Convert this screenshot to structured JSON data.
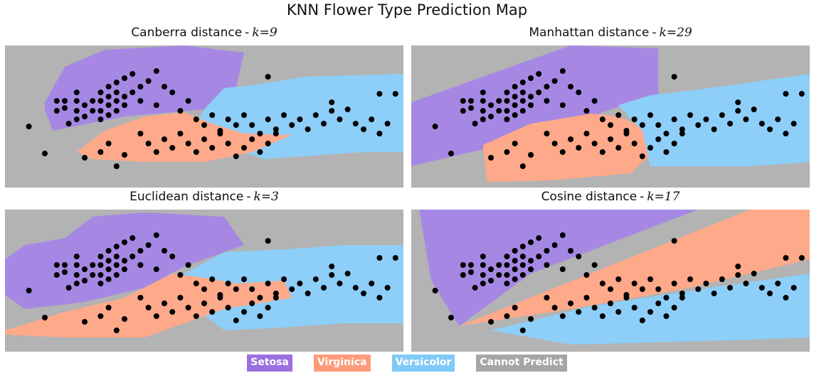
{
  "title": "KNN Flower Type Prediction Map",
  "colors": {
    "setosa": "#a688e4",
    "virginica": "#fda98a",
    "versicolor": "#8dcff8",
    "cannot": "#b3b3b3",
    "point": "#000000"
  },
  "legend": [
    {
      "label": "Setosa",
      "color": "#9b6fe0"
    },
    {
      "label": "Virginica",
      "color": "#fd9b7a"
    },
    {
      "label": "Versicolor",
      "color": "#7fcaf7"
    },
    {
      "label": "Cannot Predict",
      "color": "#a6a6a6"
    }
  ],
  "chart_data": [
    {
      "type": "scatter",
      "title": "Canberra distance",
      "k_label": "k=9",
      "k_name": "k",
      "k_value": "9",
      "background": "cannot",
      "regions": [
        {
          "class": "setosa",
          "points": [
            [
              0.1,
              0.4
            ],
            [
              0.15,
              0.15
            ],
            [
              0.25,
              0.03
            ],
            [
              0.45,
              0.0
            ],
            [
              0.6,
              0.05
            ],
            [
              0.58,
              0.3
            ],
            [
              0.5,
              0.45
            ],
            [
              0.3,
              0.5
            ],
            [
              0.12,
              0.6
            ],
            [
              0.1,
              0.45
            ]
          ]
        },
        {
          "class": "versicolor",
          "points": [
            [
              0.5,
              0.45
            ],
            [
              0.55,
              0.3
            ],
            [
              0.62,
              0.28
            ],
            [
              0.75,
              0.22
            ],
            [
              1.0,
              0.2
            ],
            [
              1.0,
              0.75
            ],
            [
              0.9,
              0.75
            ],
            [
              0.65,
              0.8
            ],
            [
              0.55,
              0.7
            ],
            [
              0.48,
              0.55
            ]
          ]
        },
        {
          "class": "virginica",
          "points": [
            [
              0.18,
              0.75
            ],
            [
              0.25,
              0.6
            ],
            [
              0.35,
              0.5
            ],
            [
              0.45,
              0.47
            ],
            [
              0.52,
              0.55
            ],
            [
              0.6,
              0.62
            ],
            [
              0.72,
              0.63
            ],
            [
              0.62,
              0.75
            ],
            [
              0.5,
              0.82
            ],
            [
              0.35,
              0.82
            ],
            [
              0.22,
              0.8
            ]
          ]
        }
      ]
    },
    {
      "type": "scatter",
      "title": "Manhattan distance",
      "k_label": "k=29",
      "k_name": "k",
      "k_value": "29",
      "background": "cannot",
      "regions": [
        {
          "class": "setosa",
          "points": [
            [
              0.0,
              0.4
            ],
            [
              0.1,
              0.3
            ],
            [
              0.3,
              0.1
            ],
            [
              0.4,
              0.0
            ],
            [
              0.62,
              0.02
            ],
            [
              0.62,
              0.35
            ],
            [
              0.5,
              0.45
            ],
            [
              0.3,
              0.65
            ],
            [
              0.15,
              0.75
            ],
            [
              0.0,
              0.85
            ]
          ]
        },
        {
          "class": "virginica",
          "points": [
            [
              0.18,
              0.7
            ],
            [
              0.3,
              0.55
            ],
            [
              0.45,
              0.48
            ],
            [
              0.52,
              0.5
            ],
            [
              0.6,
              0.6
            ],
            [
              0.62,
              0.72
            ],
            [
              0.55,
              0.9
            ],
            [
              0.35,
              0.95
            ],
            [
              0.19,
              0.96
            ]
          ]
        },
        {
          "class": "versicolor",
          "points": [
            [
              0.52,
              0.42
            ],
            [
              0.6,
              0.35
            ],
            [
              0.75,
              0.3
            ],
            [
              1.0,
              0.2
            ],
            [
              1.0,
              0.82
            ],
            [
              0.85,
              0.85
            ],
            [
              0.6,
              0.85
            ],
            [
              0.58,
              0.6
            ]
          ]
        }
      ]
    },
    {
      "type": "scatter",
      "title": "Euclidean distance",
      "k_label": "k=3",
      "k_name": "k",
      "k_value": "3",
      "background": "cannot",
      "regions": [
        {
          "class": "setosa",
          "points": [
            [
              0.0,
              0.35
            ],
            [
              0.05,
              0.25
            ],
            [
              0.15,
              0.2
            ],
            [
              0.22,
              0.05
            ],
            [
              0.35,
              0.02
            ],
            [
              0.55,
              0.05
            ],
            [
              0.6,
              0.25
            ],
            [
              0.45,
              0.4
            ],
            [
              0.35,
              0.55
            ],
            [
              0.2,
              0.65
            ],
            [
              0.05,
              0.7
            ],
            [
              0.0,
              0.6
            ]
          ]
        },
        {
          "class": "versicolor",
          "points": [
            [
              0.45,
              0.45
            ],
            [
              0.55,
              0.3
            ],
            [
              0.7,
              0.28
            ],
            [
              0.85,
              0.25
            ],
            [
              1.0,
              0.25
            ],
            [
              1.0,
              0.8
            ],
            [
              0.85,
              0.8
            ],
            [
              0.7,
              0.83
            ],
            [
              0.55,
              0.85
            ],
            [
              0.48,
              0.7
            ]
          ]
        },
        {
          "class": "virginica",
          "points": [
            [
              0.0,
              0.85
            ],
            [
              0.15,
              0.72
            ],
            [
              0.3,
              0.62
            ],
            [
              0.42,
              0.45
            ],
            [
              0.5,
              0.48
            ],
            [
              0.58,
              0.52
            ],
            [
              0.7,
              0.5
            ],
            [
              0.72,
              0.62
            ],
            [
              0.55,
              0.7
            ],
            [
              0.45,
              0.8
            ],
            [
              0.35,
              0.9
            ],
            [
              0.15,
              0.9
            ],
            [
              0.0,
              0.88
            ]
          ]
        }
      ]
    },
    {
      "type": "scatter",
      "title": "Cosine distance",
      "k_label": "k=17",
      "k_name": "k",
      "k_value": "17",
      "background": "cannot",
      "regions": [
        {
          "class": "setosa",
          "points": [
            [
              0.02,
              0.0
            ],
            [
              0.72,
              0.0
            ],
            [
              0.3,
              0.45
            ],
            [
              0.12,
              0.82
            ],
            [
              0.05,
              0.5
            ]
          ]
        },
        {
          "class": "virginica",
          "points": [
            [
              0.12,
              0.82
            ],
            [
              0.45,
              0.45
            ],
            [
              0.85,
              0.0
            ],
            [
              1.0,
              0.0
            ],
            [
              1.0,
              0.35
            ],
            [
              0.7,
              0.55
            ],
            [
              0.4,
              0.7
            ]
          ]
        },
        {
          "class": "versicolor",
          "points": [
            [
              0.2,
              0.85
            ],
            [
              0.45,
              0.68
            ],
            [
              0.75,
              0.55
            ],
            [
              1.0,
              0.45
            ],
            [
              1.0,
              0.9
            ],
            [
              0.8,
              0.92
            ],
            [
              0.4,
              0.95
            ]
          ]
        }
      ]
    }
  ],
  "samples": [
    [
      0.13,
      0.39
    ],
    [
      0.13,
      0.46
    ],
    [
      0.15,
      0.39
    ],
    [
      0.15,
      0.44
    ],
    [
      0.16,
      0.55
    ],
    [
      0.18,
      0.33
    ],
    [
      0.18,
      0.39
    ],
    [
      0.18,
      0.46
    ],
    [
      0.18,
      0.52
    ],
    [
      0.2,
      0.42
    ],
    [
      0.2,
      0.5
    ],
    [
      0.22,
      0.39
    ],
    [
      0.22,
      0.46
    ],
    [
      0.24,
      0.33
    ],
    [
      0.24,
      0.39
    ],
    [
      0.24,
      0.46
    ],
    [
      0.24,
      0.52
    ],
    [
      0.26,
      0.29
    ],
    [
      0.26,
      0.36
    ],
    [
      0.26,
      0.42
    ],
    [
      0.26,
      0.49
    ],
    [
      0.28,
      0.26
    ],
    [
      0.28,
      0.33
    ],
    [
      0.28,
      0.39
    ],
    [
      0.28,
      0.46
    ],
    [
      0.3,
      0.23
    ],
    [
      0.3,
      0.36
    ],
    [
      0.3,
      0.42
    ],
    [
      0.32,
      0.2
    ],
    [
      0.32,
      0.33
    ],
    [
      0.34,
      0.29
    ],
    [
      0.34,
      0.39
    ],
    [
      0.36,
      0.25
    ],
    [
      0.38,
      0.18
    ],
    [
      0.4,
      0.29
    ],
    [
      0.42,
      0.33
    ],
    [
      0.38,
      0.42
    ],
    [
      0.44,
      0.46
    ],
    [
      0.46,
      0.39
    ],
    [
      0.48,
      0.52
    ],
    [
      0.5,
      0.56
    ],
    [
      0.52,
      0.49
    ],
    [
      0.54,
      0.6
    ],
    [
      0.56,
      0.52
    ],
    [
      0.58,
      0.56
    ],
    [
      0.6,
      0.49
    ],
    [
      0.62,
      0.56
    ],
    [
      0.64,
      0.62
    ],
    [
      0.66,
      0.52
    ],
    [
      0.68,
      0.59
    ],
    [
      0.7,
      0.49
    ],
    [
      0.72,
      0.56
    ],
    [
      0.74,
      0.52
    ],
    [
      0.76,
      0.59
    ],
    [
      0.78,
      0.49
    ],
    [
      0.8,
      0.55
    ],
    [
      0.82,
      0.46
    ],
    [
      0.84,
      0.52
    ],
    [
      0.86,
      0.45
    ],
    [
      0.88,
      0.55
    ],
    [
      0.9,
      0.59
    ],
    [
      0.92,
      0.52
    ],
    [
      0.94,
      0.62
    ],
    [
      0.96,
      0.55
    ],
    [
      0.34,
      0.62
    ],
    [
      0.36,
      0.69
    ],
    [
      0.38,
      0.75
    ],
    [
      0.4,
      0.66
    ],
    [
      0.42,
      0.72
    ],
    [
      0.44,
      0.62
    ],
    [
      0.46,
      0.69
    ],
    [
      0.48,
      0.75
    ],
    [
      0.5,
      0.66
    ],
    [
      0.52,
      0.72
    ],
    [
      0.54,
      0.62
    ],
    [
      0.56,
      0.69
    ],
    [
      0.58,
      0.78
    ],
    [
      0.6,
      0.72
    ],
    [
      0.62,
      0.66
    ],
    [
      0.64,
      0.75
    ],
    [
      0.66,
      0.69
    ],
    [
      0.68,
      0.62
    ],
    [
      0.2,
      0.79
    ],
    [
      0.24,
      0.75
    ],
    [
      0.26,
      0.69
    ],
    [
      0.28,
      0.85
    ],
    [
      0.3,
      0.77
    ],
    [
      0.1,
      0.76
    ],
    [
      0.06,
      0.57
    ],
    [
      0.94,
      0.34
    ],
    [
      0.98,
      0.34
    ],
    [
      0.82,
      0.4
    ],
    [
      0.66,
      0.22
    ]
  ]
}
